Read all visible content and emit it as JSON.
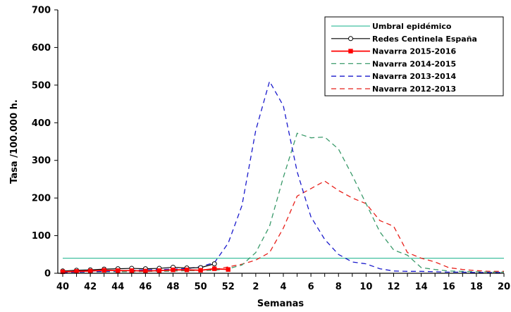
{
  "chart_data": {
    "type": "line",
    "title": "",
    "xlabel": "Semanas",
    "ylabel": "Tasa /100.000 h.",
    "ylim": [
      0,
      700
    ],
    "yticks": [
      "0",
      "100",
      "200",
      "300",
      "400",
      "500",
      "600",
      "700"
    ],
    "x": [
      "40",
      "41",
      "42",
      "43",
      "44",
      "45",
      "46",
      "47",
      "48",
      "49",
      "50",
      "51",
      "52",
      "1",
      "2",
      "3",
      "4",
      "5",
      "6",
      "7",
      "8",
      "9",
      "10",
      "11",
      "12",
      "13",
      "14",
      "15",
      "16",
      "17",
      "18",
      "19",
      "20"
    ],
    "xtick_labels": [
      "40",
      "42",
      "44",
      "46",
      "48",
      "50",
      "52",
      "2",
      "4",
      "6",
      "8",
      "10",
      "12",
      "14",
      "16",
      "18",
      "20"
    ],
    "grid": false,
    "legend_position": "top-right",
    "series": [
      {
        "name": "Umbral epidémico",
        "color": "#40c0a0",
        "style": "solid",
        "marker": "none",
        "values": [
          40,
          40,
          40,
          40,
          40,
          40,
          40,
          40,
          40,
          40,
          40,
          40,
          40,
          40,
          40,
          40,
          40,
          40,
          40,
          40,
          40,
          40,
          40,
          40,
          40,
          40,
          40,
          40,
          40,
          40,
          40,
          40,
          40
        ]
      },
      {
        "name": "Redes Centinela España",
        "color": "#000000",
        "style": "solid",
        "marker": "circle-open",
        "values": [
          6,
          8,
          9,
          11,
          12,
          13,
          12,
          13,
          16,
          14,
          15,
          25,
          null,
          null,
          null,
          null,
          null,
          null,
          null,
          null,
          null,
          null,
          null,
          null,
          null,
          null,
          null,
          null,
          null,
          null,
          null,
          null,
          null
        ]
      },
      {
        "name": "Navarra 2015-2016",
        "color": "#ff0000",
        "style": "solid",
        "marker": "square",
        "values": [
          4,
          5,
          6,
          8,
          7,
          7,
          6,
          7,
          9,
          9,
          8,
          12,
          10,
          null,
          null,
          null,
          null,
          null,
          null,
          null,
          null,
          null,
          null,
          null,
          null,
          null,
          null,
          null,
          null,
          null,
          null,
          null,
          null
        ]
      },
      {
        "name": "Navarra 2014-2015",
        "color": "#3a9a6a",
        "style": "dashed",
        "marker": "none",
        "values": [
          3,
          3,
          3,
          4,
          4,
          4,
          5,
          5,
          6,
          7,
          7,
          8,
          12,
          22,
          55,
          125,
          255,
          372,
          360,
          362,
          330,
          260,
          185,
          110,
          62,
          48,
          15,
          10,
          6,
          5,
          4,
          3,
          3
        ]
      },
      {
        "name": "Navarra 2013-2014",
        "color": "#1a1acc",
        "style": "dashed",
        "marker": "none",
        "values": [
          2,
          3,
          4,
          5,
          6,
          8,
          9,
          10,
          11,
          12,
          18,
          28,
          80,
          180,
          380,
          510,
          445,
          270,
          150,
          90,
          50,
          30,
          25,
          12,
          6,
          5,
          5,
          4,
          3,
          3,
          2,
          2,
          2
        ]
      },
      {
        "name": "Navarra 2012-2013",
        "color": "#e8201a",
        "style": "dashed",
        "marker": "none",
        "values": [
          3,
          3,
          4,
          4,
          4,
          4,
          5,
          5,
          6,
          7,
          8,
          10,
          17,
          24,
          35,
          55,
          120,
          205,
          225,
          245,
          220,
          200,
          185,
          140,
          125,
          55,
          40,
          30,
          15,
          10,
          7,
          5,
          5
        ]
      }
    ]
  }
}
